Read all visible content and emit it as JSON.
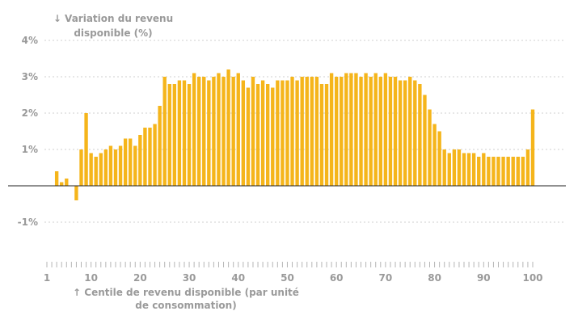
{
  "chart_data": {
    "type": "bar",
    "ylabel": "↓ Variation du revenu disponible (%)",
    "xlabel": "↑ Centile de revenu disponible (par unité de consommation)",
    "y_unit": "%",
    "ylim": [
      -2,
      4
    ],
    "xlim": [
      1,
      100
    ],
    "y_ticks": [
      {
        "value": 4,
        "label": "4%"
      },
      {
        "value": 3,
        "label": "3%"
      },
      {
        "value": 2,
        "label": "2%"
      },
      {
        "value": 1,
        "label": "1%"
      },
      {
        "value": -1,
        "label": "-1%"
      }
    ],
    "x_ticks": [
      {
        "value": 1,
        "label": "1"
      },
      {
        "value": 10,
        "label": "10"
      },
      {
        "value": 20,
        "label": "20"
      },
      {
        "value": 30,
        "label": "30"
      },
      {
        "value": 40,
        "label": "40"
      },
      {
        "value": 50,
        "label": "50"
      },
      {
        "value": 60,
        "label": "60"
      },
      {
        "value": 70,
        "label": "70"
      },
      {
        "value": 80,
        "label": "80"
      },
      {
        "value": 90,
        "label": "90"
      },
      {
        "value": 100,
        "label": "100"
      }
    ],
    "grid": true,
    "bar_color": "#f5b51b",
    "x": [
      1,
      2,
      3,
      4,
      5,
      6,
      7,
      8,
      9,
      10,
      11,
      12,
      13,
      14,
      15,
      16,
      17,
      18,
      19,
      20,
      21,
      22,
      23,
      24,
      25,
      26,
      27,
      28,
      29,
      30,
      31,
      32,
      33,
      34,
      35,
      36,
      37,
      38,
      39,
      40,
      41,
      42,
      43,
      44,
      45,
      46,
      47,
      48,
      49,
      50,
      51,
      52,
      53,
      54,
      55,
      56,
      57,
      58,
      59,
      60,
      61,
      62,
      63,
      64,
      65,
      66,
      67,
      68,
      69,
      70,
      71,
      72,
      73,
      74,
      75,
      76,
      77,
      78,
      79,
      80,
      81,
      82,
      83,
      84,
      85,
      86,
      87,
      88,
      89,
      90,
      91,
      92,
      93,
      94,
      95,
      96,
      97,
      98,
      99,
      100
    ],
    "values": [
      0,
      0,
      0.4,
      0.1,
      0.2,
      0,
      -0.4,
      1.0,
      2.0,
      0.9,
      0.8,
      0.9,
      1.0,
      1.1,
      1.0,
      1.1,
      1.3,
      1.3,
      1.1,
      1.4,
      1.6,
      1.6,
      1.7,
      2.2,
      3.0,
      2.8,
      2.8,
      2.9,
      2.9,
      2.8,
      3.1,
      3.0,
      3.0,
      2.9,
      3.0,
      3.1,
      3.0,
      3.2,
      3.0,
      3.1,
      2.9,
      2.7,
      3.0,
      2.8,
      2.9,
      2.8,
      2.7,
      2.9,
      2.9,
      2.9,
      3.0,
      2.9,
      3.0,
      3.0,
      3.0,
      3.0,
      2.8,
      2.8,
      3.1,
      3.0,
      3.0,
      3.1,
      3.1,
      3.1,
      3.0,
      3.1,
      3.0,
      3.1,
      3.0,
      3.1,
      3.0,
      3.0,
      2.9,
      2.9,
      3.0,
      2.9,
      2.8,
      2.5,
      2.1,
      1.7,
      1.5,
      1.0,
      0.9,
      1.0,
      1.0,
      0.9,
      0.9,
      0.9,
      0.8,
      0.9,
      0.8,
      0.8,
      0.8,
      0.8,
      0.8,
      0.8,
      0.8,
      0.8,
      1.0,
      2.1
    ]
  },
  "colors": {
    "bar": "#f5b51b",
    "grid": "#cfcfcf",
    "axis_text": "#9a9a9a",
    "zero_line": "#222222"
  }
}
